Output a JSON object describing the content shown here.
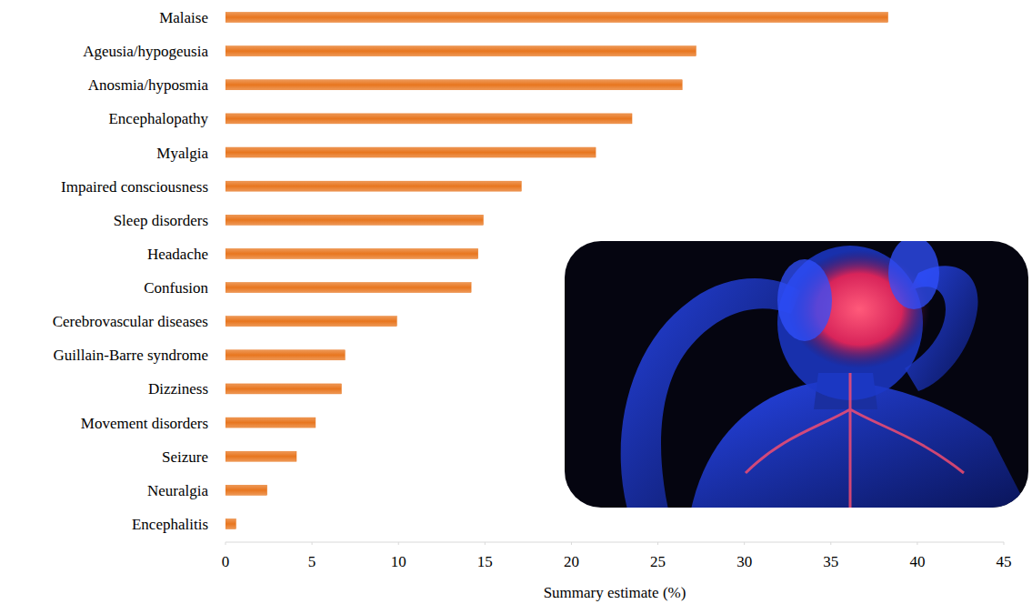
{
  "chart_data": {
    "type": "bar",
    "orientation": "horizontal",
    "categories": [
      "Malaise",
      "Ageusia/hypogeusia",
      "Anosmia/hyposmia",
      "Encephalopathy",
      "Myalgia",
      "Impaired consciousness",
      "Sleep disorders",
      "Headache",
      "Confusion",
      "Cerebrovascular diseases",
      "Guillain-Barre syndrome",
      "Dizziness",
      "Movement disorders",
      "Seizure",
      "Neuralgia",
      "Encephalitis"
    ],
    "values": [
      38.3,
      27.2,
      26.4,
      23.5,
      21.4,
      17.1,
      14.9,
      14.6,
      14.2,
      9.9,
      6.9,
      6.7,
      5.2,
      4.1,
      2.4,
      0.6
    ],
    "color": "#e8761f",
    "x_label": "Summary estimate (%)",
    "xlim": [
      0,
      45
    ],
    "xticks": [
      0,
      5,
      10,
      15,
      20,
      25,
      30,
      35,
      40,
      45
    ],
    "grid": false
  }
}
